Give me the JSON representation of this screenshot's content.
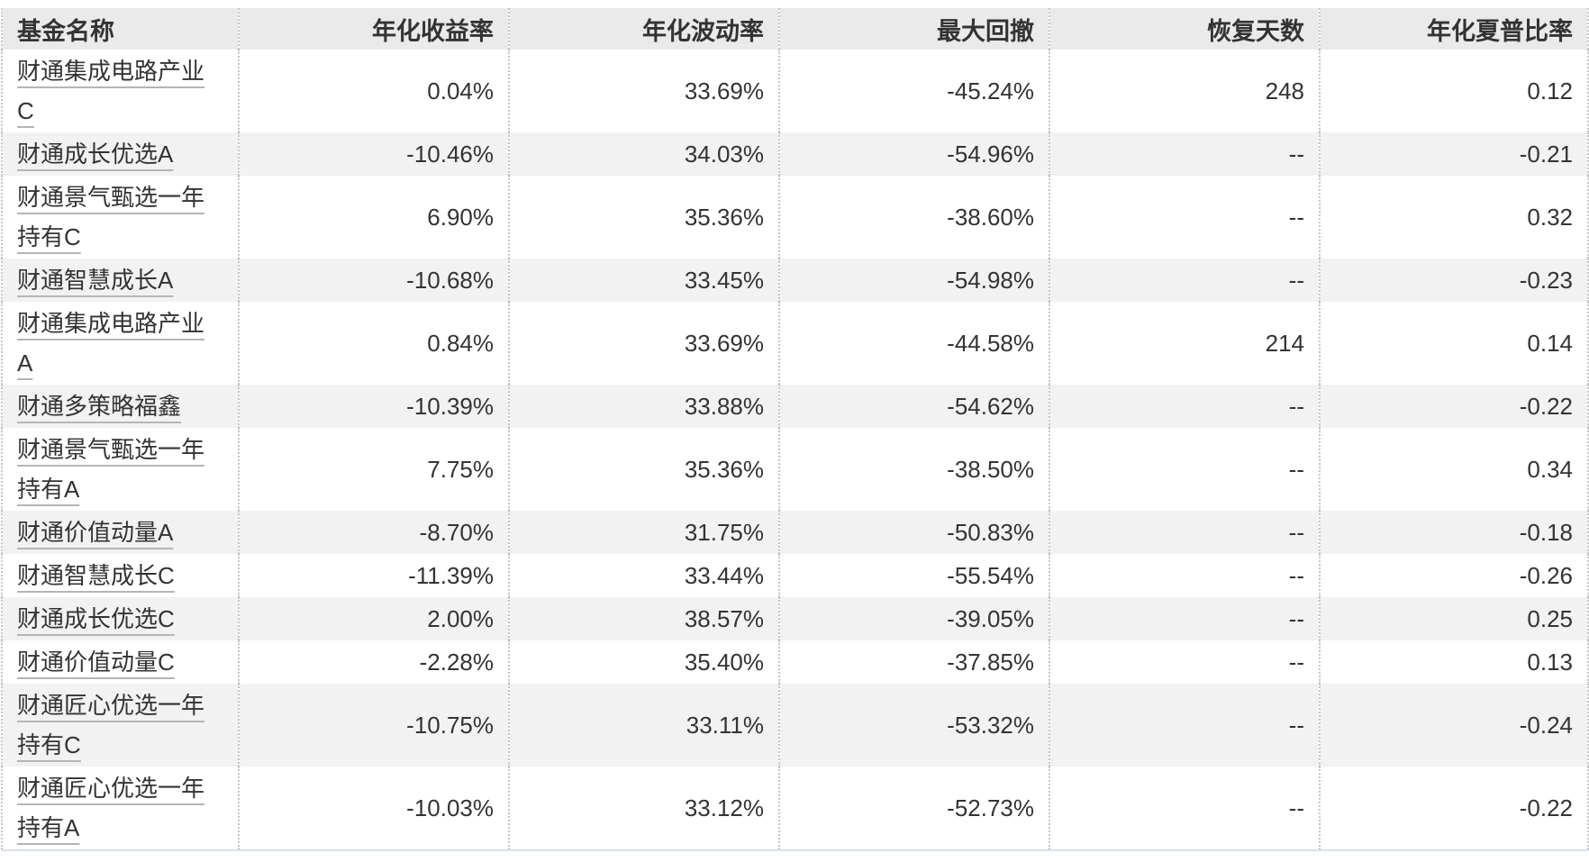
{
  "colors": {
    "text": "#333333",
    "header_bg": "#eaeaea",
    "row_alt_bg": "#f2f2f2",
    "divider": "#c6c6c6",
    "link_underline": "#b5b5b5",
    "bottom_border": "#d9e0e7"
  },
  "table": {
    "columns": [
      {
        "key": "name",
        "label": "基金名称"
      },
      {
        "key": "annual_return",
        "label": "年化收益率"
      },
      {
        "key": "annual_volatility",
        "label": "年化波动率"
      },
      {
        "key": "max_drawdown",
        "label": "最大回撤"
      },
      {
        "key": "recovery_days",
        "label": "恢复天数"
      },
      {
        "key": "annual_sharpe",
        "label": "年化夏普比率"
      }
    ],
    "rows": [
      {
        "name": "财通集成电路产业C",
        "annual_return": "0.04%",
        "annual_volatility": "33.69%",
        "max_drawdown": "-45.24%",
        "recovery_days": "248",
        "annual_sharpe": "0.12"
      },
      {
        "name": "财通成长优选A",
        "annual_return": "-10.46%",
        "annual_volatility": "34.03%",
        "max_drawdown": "-54.96%",
        "recovery_days": "--",
        "annual_sharpe": "-0.21"
      },
      {
        "name": "财通景气甄选一年持有C",
        "annual_return": "6.90%",
        "annual_volatility": "35.36%",
        "max_drawdown": "-38.60%",
        "recovery_days": "--",
        "annual_sharpe": "0.32"
      },
      {
        "name": "财通智慧成长A",
        "annual_return": "-10.68%",
        "annual_volatility": "33.45%",
        "max_drawdown": "-54.98%",
        "recovery_days": "--",
        "annual_sharpe": "-0.23"
      },
      {
        "name": "财通集成电路产业A",
        "annual_return": "0.84%",
        "annual_volatility": "33.69%",
        "max_drawdown": "-44.58%",
        "recovery_days": "214",
        "annual_sharpe": "0.14"
      },
      {
        "name": "财通多策略福鑫",
        "annual_return": "-10.39%",
        "annual_volatility": "33.88%",
        "max_drawdown": "-54.62%",
        "recovery_days": "--",
        "annual_sharpe": "-0.22"
      },
      {
        "name": "财通景气甄选一年持有A",
        "annual_return": "7.75%",
        "annual_volatility": "35.36%",
        "max_drawdown": "-38.50%",
        "recovery_days": "--",
        "annual_sharpe": "0.34"
      },
      {
        "name": "财通价值动量A",
        "annual_return": "-8.70%",
        "annual_volatility": "31.75%",
        "max_drawdown": "-50.83%",
        "recovery_days": "--",
        "annual_sharpe": "-0.18"
      },
      {
        "name": "财通智慧成长C",
        "annual_return": "-11.39%",
        "annual_volatility": "33.44%",
        "max_drawdown": "-55.54%",
        "recovery_days": "--",
        "annual_sharpe": "-0.26"
      },
      {
        "name": "财通成长优选C",
        "annual_return": "2.00%",
        "annual_volatility": "38.57%",
        "max_drawdown": "-39.05%",
        "recovery_days": "--",
        "annual_sharpe": "0.25"
      },
      {
        "name": "财通价值动量C",
        "annual_return": "-2.28%",
        "annual_volatility": "35.40%",
        "max_drawdown": "-37.85%",
        "recovery_days": "--",
        "annual_sharpe": "0.13"
      },
      {
        "name": "财通匠心优选一年持有C",
        "annual_return": "-10.75%",
        "annual_volatility": "33.11%",
        "max_drawdown": "-53.32%",
        "recovery_days": "--",
        "annual_sharpe": "-0.24"
      },
      {
        "name": "财通匠心优选一年持有A",
        "annual_return": "-10.03%",
        "annual_volatility": "33.12%",
        "max_drawdown": "-52.73%",
        "recovery_days": "--",
        "annual_sharpe": "-0.22"
      }
    ]
  }
}
